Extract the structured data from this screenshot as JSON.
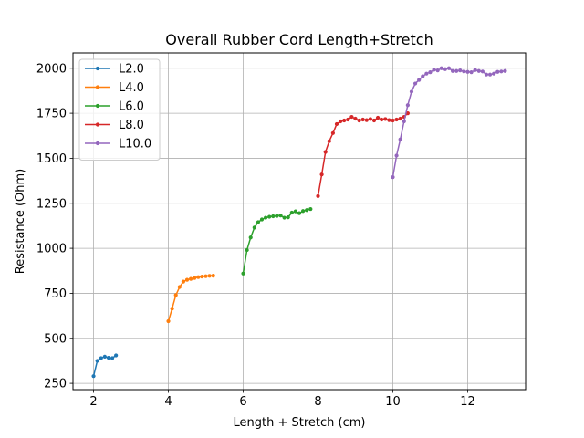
{
  "chart_data": {
    "type": "line",
    "title": "Overall Rubber Cord Length+Stretch",
    "xlabel": "Length + Stretch (cm)",
    "ylabel": "Resistance (Ohm)",
    "xlim": [
      1.45,
      13.55
    ],
    "ylim": [
      215,
      2085
    ],
    "xticks": [
      2,
      4,
      6,
      8,
      10,
      12
    ],
    "yticks": [
      250,
      500,
      750,
      1000,
      1250,
      1500,
      1750,
      2000
    ],
    "grid": true,
    "legend_position": "top-left",
    "series": [
      {
        "name": "L2.0",
        "color": "#1f77b4",
        "x": [
          2.0,
          2.1,
          2.2,
          2.3,
          2.4,
          2.5,
          2.6
        ],
        "y": [
          290,
          375,
          390,
          398,
          392,
          390,
          405
        ]
      },
      {
        "name": "L4.0",
        "color": "#ff7f0e",
        "x": [
          4.0,
          4.1,
          4.2,
          4.3,
          4.4,
          4.5,
          4.6,
          4.7,
          4.8,
          4.9,
          5.0,
          5.1,
          5.2
        ],
        "y": [
          595,
          665,
          740,
          785,
          815,
          825,
          830,
          835,
          840,
          843,
          845,
          847,
          848
        ]
      },
      {
        "name": "L6.0",
        "color": "#2ca02c",
        "x": [
          6.0,
          6.1,
          6.2,
          6.3,
          6.4,
          6.5,
          6.6,
          6.7,
          6.8,
          6.9,
          7.0,
          7.1,
          7.2,
          7.3,
          7.4,
          7.5,
          7.6,
          7.7,
          7.8
        ],
        "y": [
          860,
          990,
          1060,
          1115,
          1145,
          1160,
          1170,
          1175,
          1178,
          1180,
          1182,
          1170,
          1172,
          1198,
          1205,
          1195,
          1207,
          1212,
          1218
        ]
      },
      {
        "name": "L8.0",
        "color": "#d62728",
        "x": [
          8.0,
          8.1,
          8.2,
          8.3,
          8.4,
          8.5,
          8.6,
          8.7,
          8.8,
          8.9,
          9.0,
          9.1,
          9.2,
          9.3,
          9.4,
          9.5,
          9.6,
          9.7,
          9.8,
          9.9,
          10.0,
          10.1,
          10.2,
          10.3,
          10.4
        ],
        "y": [
          1290,
          1410,
          1535,
          1595,
          1640,
          1690,
          1705,
          1710,
          1715,
          1730,
          1720,
          1710,
          1715,
          1712,
          1718,
          1710,
          1725,
          1715,
          1718,
          1712,
          1710,
          1715,
          1720,
          1730,
          1750
        ]
      },
      {
        "name": "L10.0",
        "color": "#9467bd",
        "x": [
          10.0,
          10.1,
          10.2,
          10.3,
          10.4,
          10.5,
          10.6,
          10.7,
          10.8,
          10.9,
          11.0,
          11.1,
          11.2,
          11.3,
          11.4,
          11.5,
          11.6,
          11.7,
          11.8,
          11.9,
          12.0,
          12.1,
          12.2,
          12.3,
          12.4,
          12.5,
          12.6,
          12.7,
          12.8,
          12.9,
          13.0
        ],
        "y": [
          1395,
          1515,
          1605,
          1705,
          1795,
          1870,
          1915,
          1935,
          1955,
          1970,
          1978,
          1992,
          1988,
          2000,
          1995,
          2000,
          1985,
          1985,
          1988,
          1982,
          1980,
          1978,
          1990,
          1985,
          1982,
          1965,
          1965,
          1970,
          1980,
          1982,
          1985
        ]
      }
    ]
  }
}
